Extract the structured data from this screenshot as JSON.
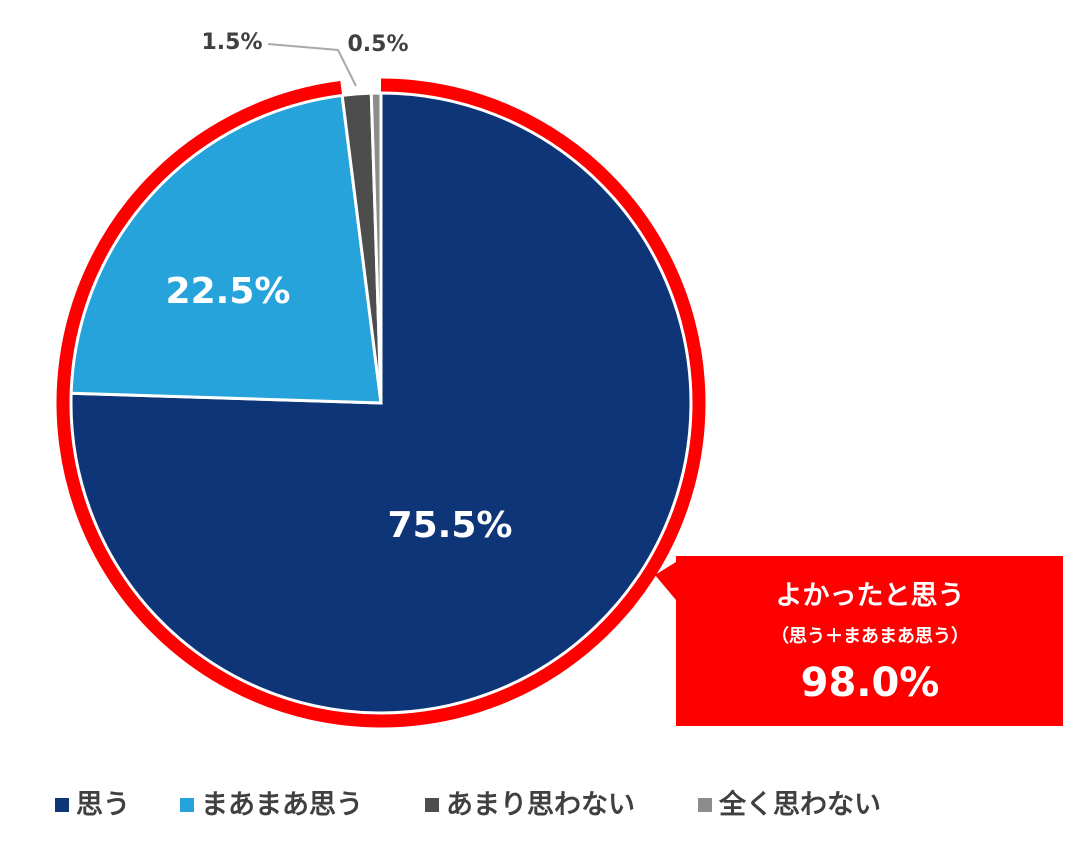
{
  "chart_data": {
    "type": "pie",
    "categories": [
      "思う",
      "まあまあ思う",
      "あまり思わない",
      "全く思わない"
    ],
    "values": [
      75.5,
      22.5,
      1.5,
      0.5
    ],
    "value_labels": [
      "75.5%",
      "22.5%",
      "1.5%",
      "0.5%"
    ],
    "colors": [
      "#0e3578",
      "#27a3db",
      "#4d4d4d",
      "#8c8c8c"
    ],
    "legend": "bottom",
    "annotation": {
      "title": "よかったと思う",
      "subtitle": "（思う＋まあまあ思う）",
      "text": "98.0%"
    }
  }
}
